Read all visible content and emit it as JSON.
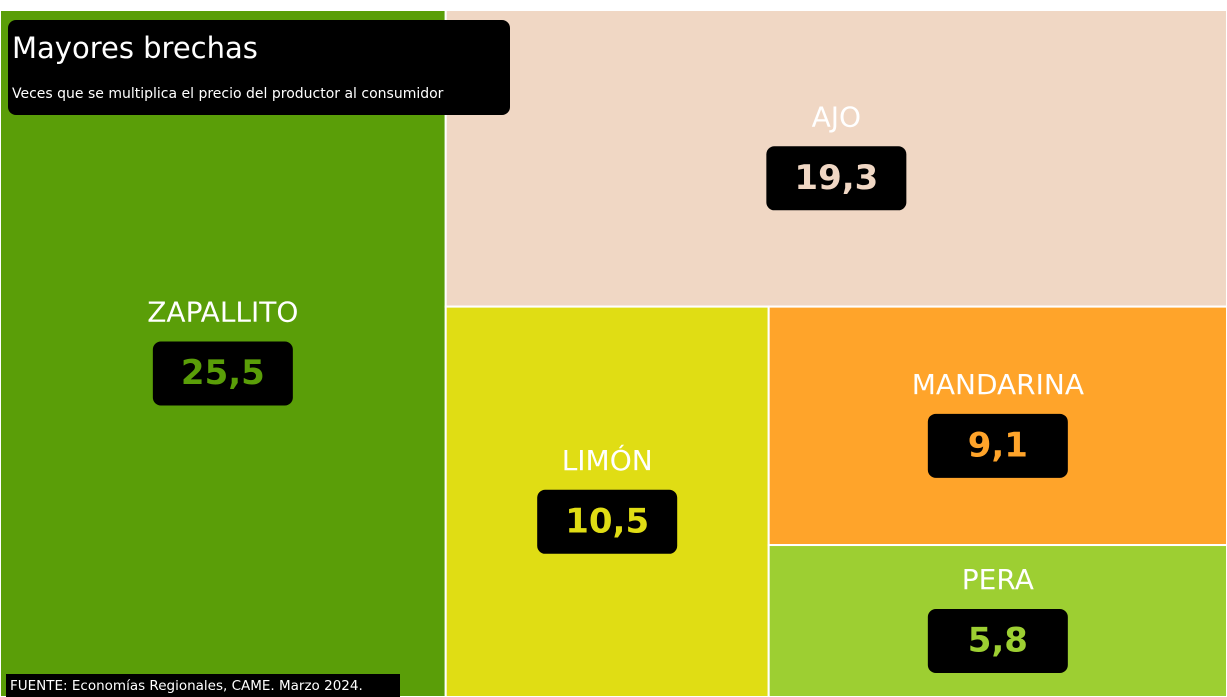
{
  "chart_data": {
    "type": "treemap",
    "title": "Mayores brechas",
    "subtitle": "Veces que se multiplica el precio del productor al consumidor",
    "source": "FUENTE: Economías Regionales, CAME. Marzo 2024.",
    "categories": [
      "ZAPALLITO",
      "AJO",
      "LIMÓN",
      "MANDARINA",
      "PERA"
    ],
    "values": [
      25.5,
      19.3,
      10.5,
      9.1,
      5.8
    ],
    "value_labels": [
      "25,5",
      "19,3",
      "10,5",
      "9,1",
      "5,8"
    ],
    "colors": [
      "#5a9e08",
      "#f0d7c4",
      "#e0dd14",
      "#ffa42a",
      "#9dcf32"
    ]
  }
}
